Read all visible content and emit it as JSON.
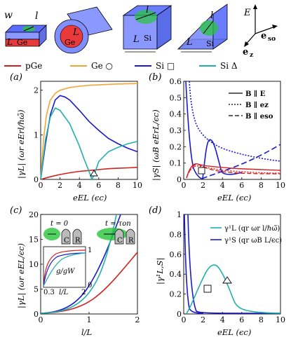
{
  "colors": {
    "pGe": "#d42020",
    "Ge": "#f4a53a",
    "Si_square": "#1a1acc",
    "Si_triangle": "#20b0aa",
    "blockRed": "#e83a3a",
    "blockBlue": "#7f8fff",
    "green": "#27c63b"
  },
  "top": {
    "block1": {
      "w": "w",
      "l": "l",
      "L": "L",
      "mat": "Ge"
    },
    "block2": {
      "L": "L",
      "mat": "Ge"
    },
    "block3": {
      "l": "l",
      "L": "L",
      "mat": "Si"
    },
    "block4": {
      "l": "l",
      "L": "L",
      "mat": "Si"
    },
    "axes": {
      "E": "E",
      "eso": "e",
      "eso_sub": "so",
      "ez": "e",
      "ez_sub": "z"
    }
  },
  "legend": {
    "items": [
      {
        "label": "pGe",
        "color": "#d42020"
      },
      {
        "label": "Ge ○",
        "color": "#f4a53a"
      },
      {
        "label": "Si □",
        "color": "#1a1acc"
      },
      {
        "label": "Si Δ",
        "color": "#20b0aa"
      }
    ]
  },
  "panels": {
    "a": {
      "label": "(a)",
      "xlabel": "eEL (ϵc)",
      "ylabel": "|γL| (ωr eErl/ℏω̃)"
    },
    "b": {
      "label": "(b)",
      "xlabel": "eEL (ϵc)",
      "ylabel": "|γS| (ωB eErL/ϵc)",
      "legend": [
        "B ∥ E",
        "B ∥ ez",
        "B ∥ eso"
      ]
    },
    "c": {
      "label": "(c)",
      "xlabel": "l/L",
      "ylabel": "|γL| (ωr eEL/ϵc)",
      "t0": "t = 0",
      "ton": "t = τon",
      "C": "C",
      "R": "R",
      "inset_label": "g/gW",
      "inset_xlabel": "l/L",
      "inset_x0": "0.3",
      "inset_x1": "2",
      "inset_y0": "0",
      "inset_y1": "1"
    },
    "d": {
      "label": "(d)",
      "xlabel": "eEL (ϵc)",
      "ylabel": "|γ¹L,S|",
      "legend": [
        "γ¹L (qr ωr l/ℏω̃)",
        "γ¹S (qr ωB L/ϵc)"
      ]
    }
  },
  "chart_data": [
    {
      "type": "line",
      "panel": "a",
      "xlim": [
        0,
        10
      ],
      "ylim": [
        0,
        2.2
      ],
      "xticks": [
        0,
        2,
        4,
        6,
        8,
        10
      ],
      "yticks": [
        0,
        1,
        2
      ],
      "series": [
        {
          "name": "pGe",
          "color": "#d42020",
          "x": [
            0,
            1,
            2,
            3,
            4,
            5,
            6,
            7,
            8,
            9,
            10
          ],
          "y": [
            0,
            0.06,
            0.11,
            0.15,
            0.18,
            0.2,
            0.22,
            0.24,
            0.25,
            0.26,
            0.27
          ]
        },
        {
          "name": "Ge ○",
          "color": "#f4a53a",
          "x": [
            0,
            0.3,
            0.6,
            1,
            1.5,
            2,
            3,
            4,
            5,
            6,
            8,
            10
          ],
          "y": [
            0,
            0.9,
            1.45,
            1.78,
            1.93,
            2.0,
            2.06,
            2.09,
            2.11,
            2.12,
            2.14,
            2.15
          ]
        },
        {
          "name": "Si □",
          "color": "#1a1acc",
          "x": [
            0,
            0.5,
            1,
            1.5,
            2,
            2.5,
            3,
            4,
            5,
            6,
            7,
            8,
            9,
            10
          ],
          "y": [
            0,
            0.8,
            1.45,
            1.78,
            1.88,
            1.85,
            1.78,
            1.55,
            1.3,
            1.1,
            0.92,
            0.8,
            0.7,
            0.62
          ]
        },
        {
          "name": "Si Δ",
          "color": "#20b0aa",
          "x": [
            0,
            0.5,
            1,
            1.5,
            2,
            3,
            4,
            4.5,
            5,
            5.3,
            5.6,
            6,
            7,
            8,
            9,
            10
          ],
          "y": [
            0,
            0.9,
            1.4,
            1.6,
            1.55,
            1.25,
            0.75,
            0.45,
            0.18,
            0.0,
            0.15,
            0.4,
            0.62,
            0.72,
            0.8,
            0.85
          ]
        }
      ]
    },
    {
      "type": "line",
      "panel": "b",
      "xlim": [
        0,
        10
      ],
      "ylim": [
        0,
        0.6
      ],
      "xticks": [
        0,
        2,
        4,
        6,
        8,
        10
      ],
      "yticks": [
        0,
        0.1,
        0.2,
        0.3,
        0.4,
        0.5,
        0.6
      ]
    },
    {
      "type": "line",
      "panel": "c",
      "xlim": [
        0,
        2
      ],
      "ylim": [
        0,
        20
      ],
      "xticks": [
        0,
        1,
        2
      ],
      "yticks": [
        0,
        5,
        10,
        15,
        20
      ]
    },
    {
      "type": "line",
      "panel": "d",
      "xlim": [
        0,
        10
      ],
      "ylim": [
        0,
        1
      ],
      "xticks": [
        0,
        2,
        4,
        6,
        8,
        10
      ],
      "yticks": [
        0,
        0.2,
        0.4,
        0.6,
        0.8,
        1
      ]
    }
  ]
}
